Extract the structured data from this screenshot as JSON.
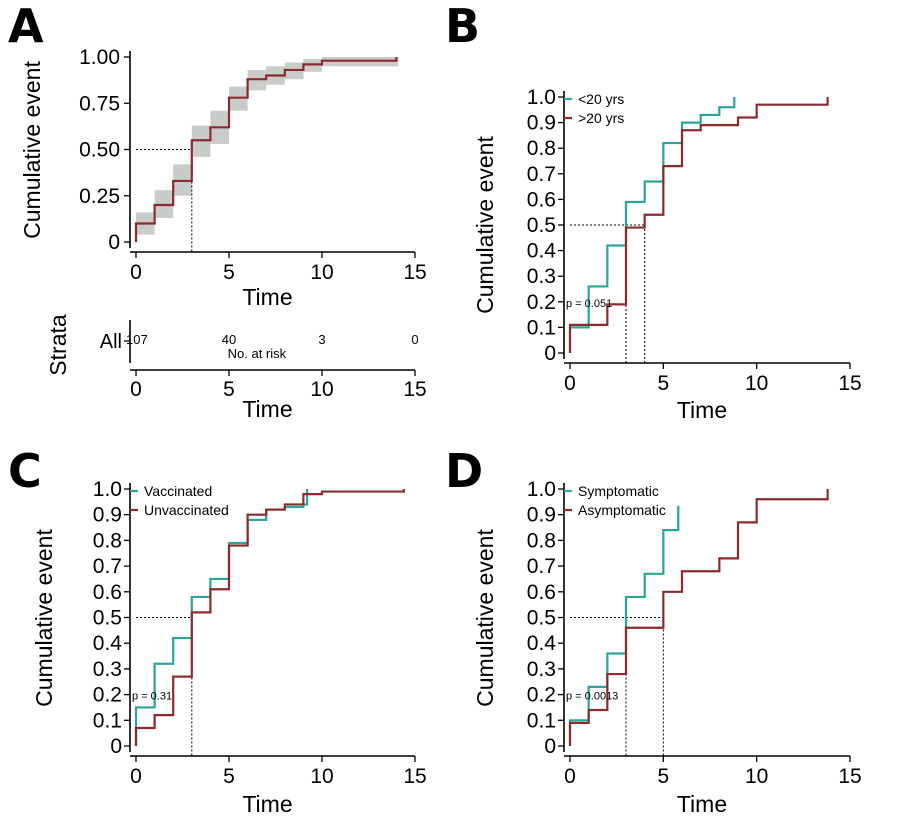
{
  "colors": {
    "teal": "#2aa597",
    "red": "#8b2a2f",
    "band": "#c8cdc9"
  },
  "chart_data": [
    {
      "type": "line",
      "panel": "A",
      "xlabel": "Time",
      "ylabel": "Cumulative event",
      "xlim": [
        0,
        15
      ],
      "ylim": [
        0,
        1
      ],
      "xticks": [
        0,
        5,
        10,
        15
      ],
      "yticks": [
        0,
        0.25,
        0.5,
        0.75,
        1.0
      ],
      "ytick_labels": [
        "0",
        "0.25",
        "0.50",
        "0.75",
        "1.00"
      ],
      "median": 3,
      "series": [
        {
          "color": "red",
          "x": [
            0,
            1,
            2,
            3,
            4,
            5,
            6,
            7,
            8,
            9,
            10,
            14
          ],
          "y": [
            0.1,
            0.2,
            0.33,
            0.55,
            0.62,
            0.78,
            0.88,
            0.9,
            0.93,
            0.96,
            0.98,
            0.99
          ],
          "ci_lower": [
            0.04,
            0.13,
            0.25,
            0.46,
            0.53,
            0.71,
            0.82,
            0.85,
            0.88,
            0.92,
            0.95,
            0.95
          ],
          "ci_upper": [
            0.16,
            0.28,
            0.42,
            0.63,
            0.71,
            0.84,
            0.93,
            0.95,
            0.97,
            0.99,
            1.0,
            1.0
          ]
        }
      ],
      "risk_table": {
        "strata_title": "Strata",
        "strata_label": "All",
        "caption": "No. at risk",
        "xlabel": "Time",
        "xticks": [
          0,
          5,
          10,
          15
        ],
        "times": [
          0,
          5,
          10,
          15
        ],
        "counts": [
          "107",
          "40",
          "3",
          "0"
        ]
      }
    },
    {
      "type": "line",
      "panel": "B",
      "xlabel": "Time",
      "ylabel": "Cumulative event",
      "xlim": [
        0,
        15
      ],
      "ylim": [
        0,
        1
      ],
      "xticks": [
        0,
        5,
        10,
        15
      ],
      "yticks": [
        0,
        0.1,
        0.2,
        0.3,
        0.4,
        0.5,
        0.6,
        0.7,
        0.8,
        0.9,
        1.0
      ],
      "ytick_labels": [
        "0",
        "0.1",
        "0.2",
        "0.3",
        "0.4",
        "0.5",
        "0.6",
        "0.7",
        "0.8",
        "0.9",
        "1.0"
      ],
      "medians": [
        3,
        4
      ],
      "p_value": "p = 0.051",
      "legend": "top-left",
      "series": [
        {
          "name": "<20 yrs",
          "color": "teal",
          "x": [
            0,
            1,
            2,
            3,
            4,
            5,
            6,
            7,
            8,
            8.8
          ],
          "y": [
            0.1,
            0.26,
            0.42,
            0.59,
            0.67,
            0.82,
            0.9,
            0.93,
            0.96,
            1.0
          ]
        },
        {
          "name": ">20 yrs",
          "color": "red",
          "x": [
            0,
            1,
            2,
            3,
            4,
            5,
            6,
            7,
            9,
            10,
            13.8
          ],
          "y": [
            0.11,
            0.11,
            0.19,
            0.49,
            0.54,
            0.73,
            0.87,
            0.89,
            0.92,
            0.97,
            0.99
          ]
        }
      ]
    },
    {
      "type": "line",
      "panel": "C",
      "xlabel": "Time",
      "ylabel": "Cumulative event",
      "xlim": [
        0,
        15
      ],
      "ylim": [
        0,
        1
      ],
      "xticks": [
        0,
        5,
        10,
        15
      ],
      "yticks": [
        0,
        0.1,
        0.2,
        0.3,
        0.4,
        0.5,
        0.6,
        0.7,
        0.8,
        0.9,
        1.0
      ],
      "ytick_labels": [
        "0",
        "0.1",
        "0.2",
        "0.3",
        "0.4",
        "0.5",
        "0.6",
        "0.7",
        "0.8",
        "0.9",
        "1.0"
      ],
      "medians": [
        3
      ],
      "p_value": "p = 0.31",
      "legend": "top-left",
      "series": [
        {
          "name": "Vaccinated",
          "color": "teal",
          "x": [
            0,
            1,
            2,
            3,
            4,
            5,
            6,
            7,
            8,
            9,
            9.2
          ],
          "y": [
            0.15,
            0.32,
            0.42,
            0.58,
            0.65,
            0.79,
            0.88,
            0.92,
            0.93,
            0.94,
            1.0
          ]
        },
        {
          "name": "Unvaccinated",
          "color": "red",
          "x": [
            0,
            1,
            2,
            3,
            4,
            5,
            6,
            7,
            8,
            9,
            10,
            14.4
          ],
          "y": [
            0.07,
            0.12,
            0.27,
            0.52,
            0.61,
            0.78,
            0.9,
            0.92,
            0.94,
            0.98,
            0.99,
            1.0
          ]
        }
      ]
    },
    {
      "type": "line",
      "panel": "D",
      "xlabel": "Time",
      "ylabel": "Cumulative event",
      "xlim": [
        0,
        15
      ],
      "ylim": [
        0,
        1
      ],
      "xticks": [
        0,
        5,
        10,
        15
      ],
      "yticks": [
        0,
        0.1,
        0.2,
        0.3,
        0.4,
        0.5,
        0.6,
        0.7,
        0.8,
        0.9,
        1.0
      ],
      "ytick_labels": [
        "0",
        "0.1",
        "0.2",
        "0.3",
        "0.4",
        "0.5",
        "0.6",
        "0.7",
        "0.8",
        "0.9",
        "1.0"
      ],
      "medians": [
        3,
        5
      ],
      "p_value": "p = 0.0013",
      "legend": "top-left",
      "series": [
        {
          "name": "Symptomatic",
          "color": "teal",
          "x": [
            0,
            1,
            2,
            3,
            4,
            5,
            5.8
          ],
          "y": [
            0.1,
            0.23,
            0.36,
            0.58,
            0.67,
            0.84,
            0.92
          ]
        },
        {
          "name": "Asymptomatic",
          "color": "red",
          "x": [
            0,
            1,
            2,
            3,
            5,
            6,
            8,
            9,
            10,
            13.8
          ],
          "y": [
            0.09,
            0.14,
            0.28,
            0.46,
            0.6,
            0.68,
            0.73,
            0.87,
            0.96,
            1.0
          ]
        }
      ]
    }
  ]
}
